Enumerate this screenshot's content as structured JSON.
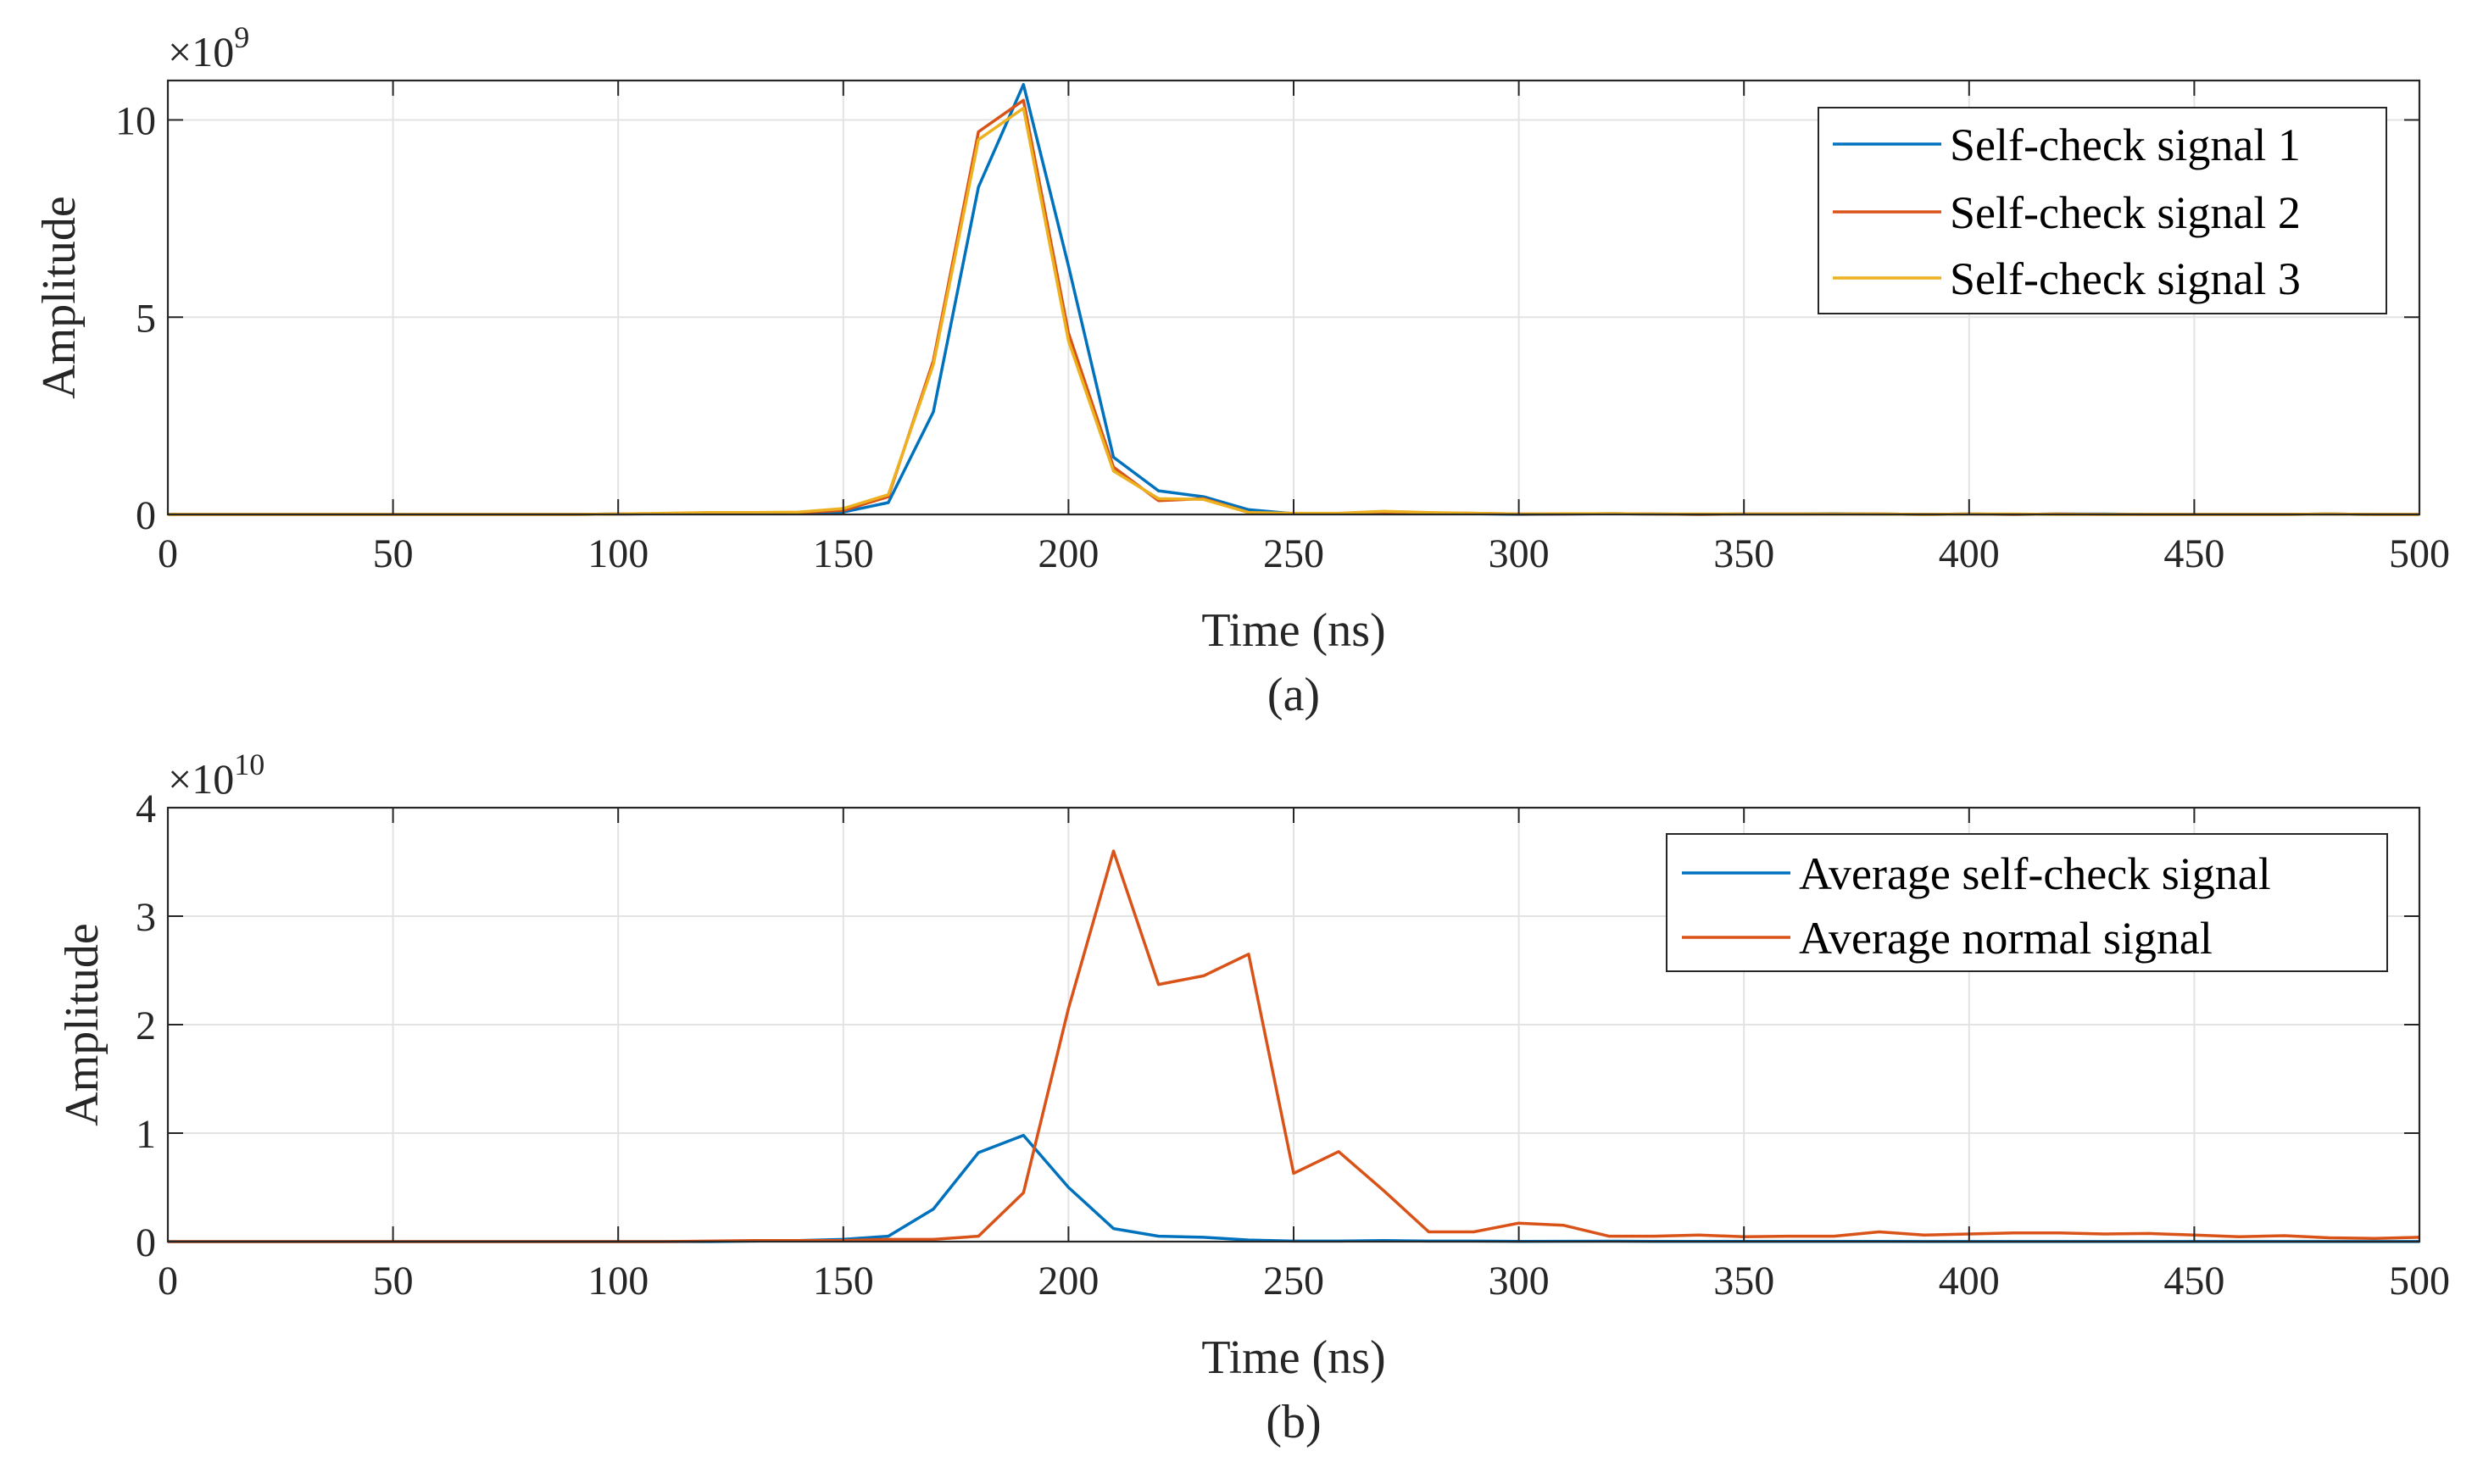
{
  "figure": {
    "panels": [
      {
        "caption": "(a)"
      },
      {
        "caption": "(b)"
      }
    ]
  },
  "chart_data": [
    {
      "type": "line",
      "panel": "(a)",
      "title": "",
      "xlabel": "Time (ns)",
      "ylabel": "Amplitude",
      "y_exponent": {
        "base": "×10",
        "power": "9"
      },
      "xlim": [
        0,
        500
      ],
      "ylim": [
        0,
        11
      ],
      "xticks": [
        0,
        50,
        100,
        150,
        200,
        250,
        300,
        350,
        400,
        450,
        500
      ],
      "xtick_labels": [
        "0",
        "50",
        "100",
        "150",
        "200",
        "250",
        "300",
        "350",
        "400",
        "450",
        "500"
      ],
      "yticks": [
        0,
        5,
        10
      ],
      "ytick_labels": [
        "0",
        "5",
        "10"
      ],
      "grid": true,
      "legend_position": "top-right",
      "x": [
        0,
        10,
        20,
        30,
        40,
        50,
        60,
        70,
        80,
        90,
        100,
        110,
        120,
        130,
        140,
        150,
        160,
        170,
        180,
        190,
        200,
        210,
        220,
        230,
        240,
        250,
        260,
        270,
        280,
        290,
        300,
        310,
        320,
        330,
        340,
        350,
        360,
        370,
        380,
        390,
        400,
        410,
        420,
        430,
        440,
        450,
        460,
        470,
        480,
        490,
        500
      ],
      "series": [
        {
          "name": "Self-check signal 1",
          "color": "#0072BD",
          "values": [
            0,
            0,
            0,
            0,
            0,
            0,
            0,
            0,
            0,
            0,
            0.01,
            0.02,
            0.03,
            0.03,
            0.04,
            0.06,
            0.3,
            2.6,
            8.3,
            10.9,
            6.3,
            1.45,
            0.6,
            0.45,
            0.12,
            0.02,
            0.02,
            0.04,
            0.02,
            0.02,
            0,
            0.01,
            0.02,
            0.01,
            0,
            0.01,
            0.01,
            0.02,
            0.01,
            0,
            0.01,
            0,
            0.01,
            0.01,
            0,
            0,
            0,
            0,
            0.01,
            0,
            0
          ]
        },
        {
          "name": "Self-check signal 2",
          "color": "#D95319",
          "values": [
            0,
            0,
            0,
            0,
            0,
            0,
            0,
            0,
            0,
            0,
            0.01,
            0.02,
            0.04,
            0.04,
            0.05,
            0.1,
            0.45,
            3.9,
            9.7,
            10.5,
            4.6,
            1.2,
            0.35,
            0.4,
            0.05,
            0.02,
            0.02,
            0.06,
            0.04,
            0.03,
            0.01,
            0.01,
            0.02,
            0.01,
            0,
            0.01,
            0.01,
            0.01,
            0.01,
            0,
            0.01,
            0,
            0.01,
            0,
            0,
            0,
            0,
            0,
            0.01,
            0,
            0
          ]
        },
        {
          "name": "Self-check signal 3",
          "color": "#EDB120",
          "values": [
            0,
            0,
            0,
            0,
            0,
            0,
            0,
            0,
            0,
            0,
            0.01,
            0.03,
            0.05,
            0.05,
            0.06,
            0.15,
            0.5,
            3.8,
            9.5,
            10.3,
            4.4,
            1.1,
            0.4,
            0.38,
            0.05,
            0.03,
            0.03,
            0.08,
            0.05,
            0.03,
            0.01,
            0.02,
            0.02,
            0.01,
            0.01,
            0.01,
            0.01,
            0.01,
            0.01,
            0,
            0.01,
            0.01,
            0,
            0,
            0,
            0,
            0,
            0,
            0.01,
            0,
            0
          ]
        }
      ]
    },
    {
      "type": "line",
      "panel": "(b)",
      "title": "",
      "xlabel": "Time (ns)",
      "ylabel": "Amplitude",
      "y_exponent": {
        "base": "×10",
        "power": "10"
      },
      "xlim": [
        0,
        500
      ],
      "ylim": [
        0,
        4
      ],
      "xticks": [
        0,
        50,
        100,
        150,
        200,
        250,
        300,
        350,
        400,
        450,
        500
      ],
      "xtick_labels": [
        "0",
        "50",
        "100",
        "150",
        "200",
        "250",
        "300",
        "350",
        "400",
        "450",
        "500"
      ],
      "yticks": [
        0,
        1,
        2,
        3,
        4
      ],
      "ytick_labels": [
        "0",
        "1",
        "2",
        "3",
        "4"
      ],
      "grid": true,
      "legend_position": "top-right",
      "x": [
        0,
        10,
        20,
        30,
        40,
        50,
        60,
        70,
        80,
        90,
        100,
        110,
        120,
        130,
        140,
        150,
        160,
        170,
        180,
        190,
        200,
        210,
        220,
        230,
        240,
        250,
        260,
        270,
        280,
        290,
        300,
        310,
        320,
        330,
        340,
        350,
        360,
        370,
        380,
        390,
        400,
        410,
        420,
        430,
        440,
        450,
        460,
        470,
        480,
        490,
        500
      ],
      "series": [
        {
          "name": "Average self-check signal",
          "color": "#0072BD",
          "values": [
            0,
            0,
            0,
            0,
            0,
            0,
            0,
            0,
            0,
            0,
            0,
            0,
            0,
            0.005,
            0.01,
            0.02,
            0.05,
            0.3,
            0.82,
            0.98,
            0.5,
            0.12,
            0.05,
            0.04,
            0.015,
            0.005,
            0.005,
            0.01,
            0.005,
            0.005,
            0.002,
            0.003,
            0.004,
            0.002,
            0.002,
            0.002,
            0.002,
            0.002,
            0.002,
            0.001,
            0.001,
            0.001,
            0.001,
            0.001,
            0.001,
            0.001,
            0.001,
            0.001,
            0.001,
            0.001,
            0.001
          ]
        },
        {
          "name": "Average normal signal",
          "color": "#D95319",
          "values": [
            0,
            0,
            0,
            0,
            0,
            0,
            0,
            0,
            0,
            0,
            0,
            0,
            0.005,
            0.01,
            0.01,
            0.01,
            0.02,
            0.02,
            0.05,
            0.45,
            2.15,
            3.6,
            2.37,
            2.45,
            2.65,
            0.63,
            0.83,
            0.47,
            0.09,
            0.09,
            0.17,
            0.15,
            0.05,
            0.05,
            0.06,
            0.045,
            0.05,
            0.05,
            0.09,
            0.06,
            0.07,
            0.08,
            0.08,
            0.07,
            0.075,
            0.06,
            0.045,
            0.055,
            0.035,
            0.03,
            0.04
          ]
        }
      ]
    }
  ]
}
